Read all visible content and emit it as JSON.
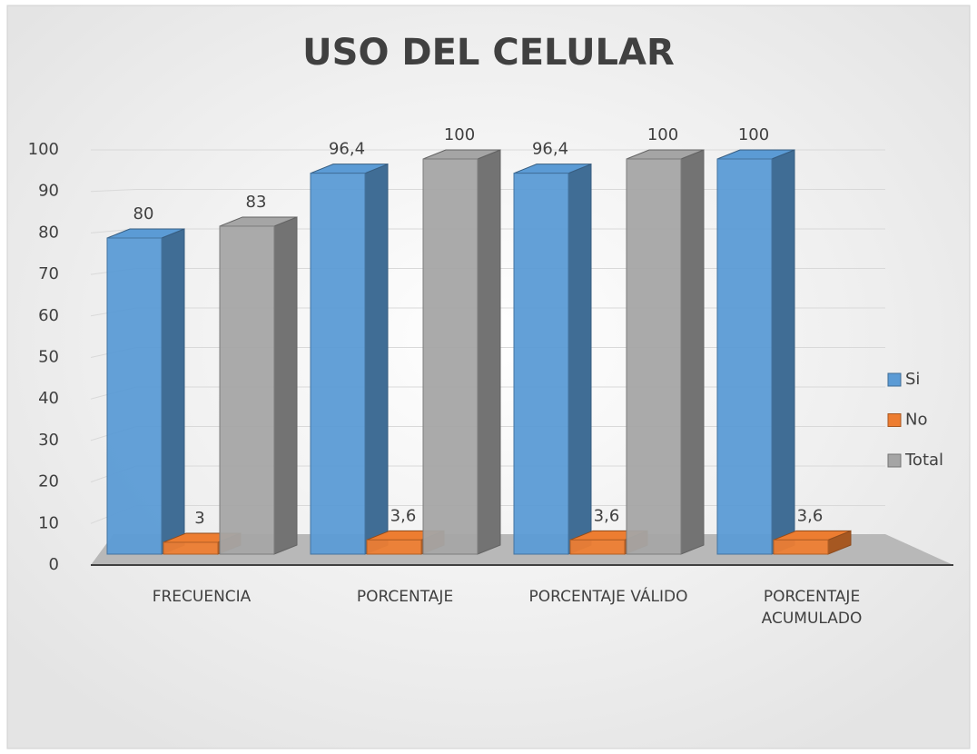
{
  "chart_data": {
    "type": "bar3d",
    "title": "USO DEL CELULAR",
    "categories": [
      "FRECUENCIA",
      "PORCENTAJE",
      "PORCENTAJE VÁLIDO",
      "PORCENTAJE ACUMULADO"
    ],
    "series": [
      {
        "name": "Si",
        "color": "#5b9bd5",
        "values": [
          80,
          96.4,
          96.4,
          100
        ],
        "value_labels": [
          "80",
          "96,4",
          "96,4",
          "100"
        ]
      },
      {
        "name": "No",
        "color": "#ed7d31",
        "values": [
          3,
          3.6,
          3.6,
          3.6
        ],
        "value_labels": [
          "3",
          "3,6",
          "3,6",
          "3,6"
        ]
      },
      {
        "name": "Total",
        "color": "#a5a5a5",
        "values": [
          83,
          100,
          100,
          null
        ],
        "value_labels": [
          "83",
          "100",
          "100",
          null
        ]
      }
    ],
    "ylim": [
      0,
      100
    ],
    "yticks": [
      0,
      10,
      20,
      30,
      40,
      50,
      60,
      70,
      80,
      90,
      100
    ],
    "grid": true,
    "legend": "right"
  }
}
